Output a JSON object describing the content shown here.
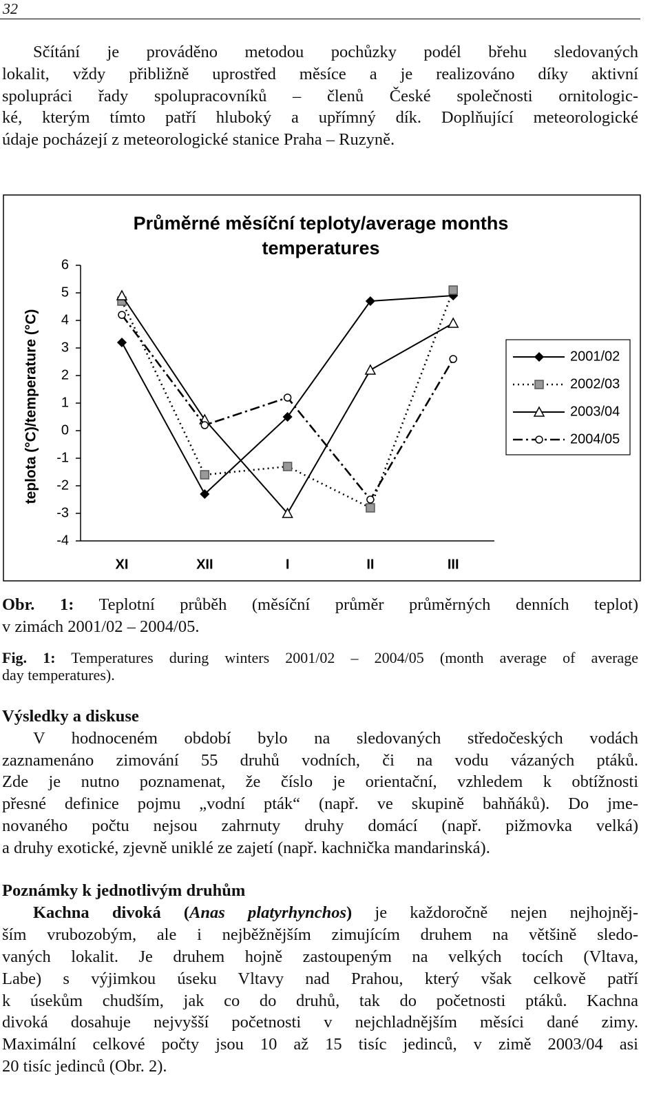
{
  "header": {
    "page_number": "32"
  },
  "intro": {
    "lines": [
      "Sčítání je prováděno metodou pochůzky podél břehu sledovaných",
      "lokalit, vždy přibližně uprostřed měsíce a je realizováno díky aktivní",
      "spolupráci řady spolupracovníků – členů České společnosti ornitologic-",
      "ké, kterým tímto patří hluboký a upřímný dík. Doplňující meteorologické",
      "údaje pocházejí z meteorologické stanice Praha – Ruzyně."
    ]
  },
  "chart_data": {
    "type": "line",
    "title": "Průměrné měsíční teploty/average months temperatures",
    "y_label": "teplota (°C)/temperature (°C)",
    "categories": [
      "XI",
      "XII",
      "I",
      "II",
      "III"
    ],
    "ylim": [
      -4,
      6
    ],
    "yticks": [
      -4,
      -3,
      -2,
      -1,
      0,
      1,
      2,
      3,
      4,
      5,
      6
    ],
    "grid": false,
    "legend": "right",
    "series": [
      {
        "name": "2001/02",
        "color": "#000000",
        "line_style": "solid",
        "marker": "diamond",
        "values": [
          3.2,
          -2.3,
          0.5,
          4.7,
          4.9
        ]
      },
      {
        "name": "2002/03",
        "color": "#000000",
        "line_style": "dotted",
        "marker": "square",
        "values": [
          4.7,
          -1.6,
          -1.3,
          -2.8,
          5.1
        ]
      },
      {
        "name": "2003/04",
        "color": "#000000",
        "line_style": "solid",
        "marker": "triangle",
        "values": [
          4.9,
          0.4,
          -3.0,
          2.2,
          3.9
        ]
      },
      {
        "name": "2004/05",
        "color": "#000000",
        "line_style": "dashdot",
        "marker": "circle",
        "values": [
          4.2,
          0.2,
          1.2,
          -2.5,
          2.6
        ]
      }
    ]
  },
  "figure": {
    "caption_cz": {
      "label": "Obr. 1:",
      "lines": [
        "Teplotní průběh (měsíční průměr průměrných denních teplot)",
        "v zimách 2001/02 – 2004/05."
      ]
    },
    "caption_en": {
      "label": "Fig. 1:",
      "lines": [
        "Temperatures during winters 2001/02 – 2004/05 (month average of average",
        "day temperatures)."
      ]
    }
  },
  "results": {
    "heading": "Výsledky a diskuse",
    "lines": [
      "V hodnoceném období bylo na sledovaných středočeských vodách",
      "zaznamenáno zimování 55 druhů vodních, či na vodu vázaných ptáků.",
      "Zde je nutno poznamenat, že číslo je orientační, vzhledem k obtížnosti",
      "přesné definice pojmu „vodní pták“ (např. ve skupině bahňáků). Do jme-",
      "novaného počtu nejsou zahrnuty druhy domácí (např. pižmovka velká)",
      "a druhy exotické, zjevně uniklé ze zajetí (např. kachnička mandarinská)."
    ]
  },
  "notes": {
    "heading": "Poznámky k jednotlivým druhům",
    "species": "Kachna divoká (",
    "latin": "Anas platyrhynchos",
    "close": ")",
    "lines": [
      "je každoročně nejen nejhojněj-",
      "ším vrubozobým, ale i nejběžnějším zimujícím druhem na většině sledo-",
      "vaných lokalit. Je druhem hojně zastoupeným na velkých tocích (Vltava,",
      "Labe) s výjimkou úseku Vltavy nad Prahou, který však celkově patří",
      "k úsekům chudším, jak co do druhů, tak do početnosti ptáků. Kachna",
      "divoká dosahuje nejvyšší početnosti v nejchladnějším měsíci dané zimy.",
      "Maximální celkové počty jsou 10 až 15 tisíc jedinců, v zimě 2003/04 asi",
      "20 tisíc jedinců (Obr. 2)."
    ]
  }
}
